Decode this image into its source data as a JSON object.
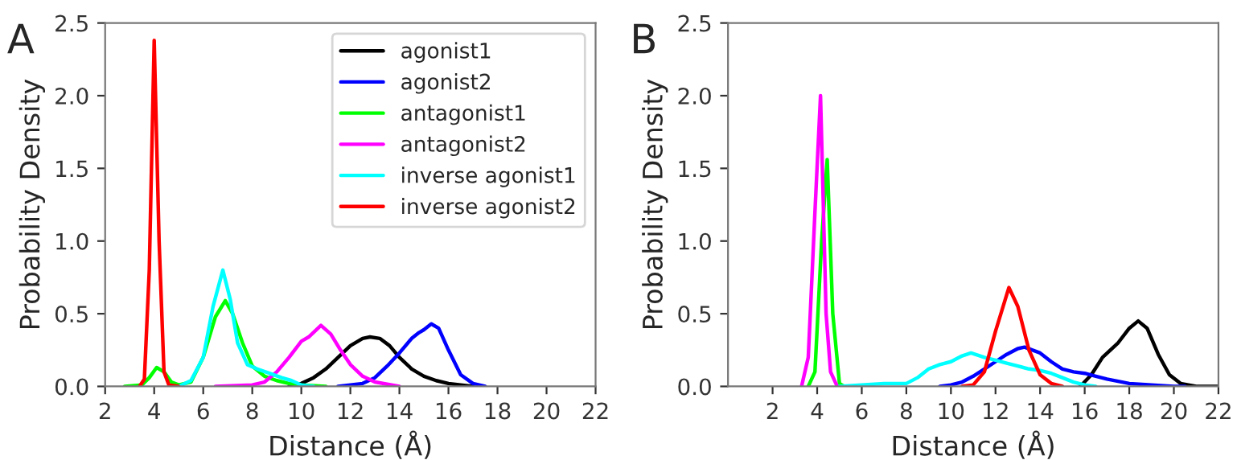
{
  "chart_data": [
    {
      "type": "line",
      "title": "A",
      "xlabel": "Distance (Å)",
      "ylabel": "Probability Density",
      "xlim": [
        2,
        22
      ],
      "xticks": [
        2,
        4,
        6,
        8,
        10,
        12,
        14,
        16,
        18,
        20,
        22
      ],
      "ylim": [
        0,
        2.5
      ],
      "yticks": [
        {
          "value": 0,
          "label": "0.0"
        },
        0.5,
        {
          "value": 1,
          "label": "1.0"
        },
        1.5,
        {
          "value": 2,
          "label": "2.0"
        },
        2.5
      ],
      "grid": false,
      "legend": "top right",
      "series": [
        {
          "name": "agonist1",
          "color": "#000000",
          "x": [
            9.5,
            10,
            10.5,
            11,
            11.5,
            12,
            12.5,
            12.8,
            13.2,
            13.6,
            14,
            14.5,
            15,
            15.5,
            16,
            16.5,
            17
          ],
          "values": [
            0,
            0.02,
            0.06,
            0.12,
            0.2,
            0.28,
            0.33,
            0.34,
            0.33,
            0.28,
            0.2,
            0.12,
            0.07,
            0.04,
            0.02,
            0.01,
            0
          ]
        },
        {
          "name": "agonist2",
          "color": "#0000ff",
          "x": [
            11.5,
            12,
            12.5,
            13,
            13.5,
            14,
            14.5,
            14.8,
            15,
            15.3,
            15.6,
            16,
            16.5,
            17,
            17.5
          ],
          "values": [
            0,
            0.01,
            0.02,
            0.06,
            0.14,
            0.23,
            0.33,
            0.37,
            0.39,
            0.43,
            0.4,
            0.25,
            0.08,
            0.02,
            0
          ]
        },
        {
          "name": "antagonist1",
          "color": "#00ff00",
          "x": [
            2.8,
            3.5,
            3.8,
            4.1,
            4.4,
            4.7,
            5,
            5.5,
            6,
            6.5,
            6.9,
            7.2,
            7.6,
            8,
            8.5,
            9,
            9.5,
            10,
            11
          ],
          "values": [
            0,
            0.01,
            0.06,
            0.13,
            0.1,
            0.03,
            0.01,
            0.03,
            0.2,
            0.48,
            0.59,
            0.5,
            0.3,
            0.14,
            0.07,
            0.04,
            0.02,
            0.01,
            0
          ]
        },
        {
          "name": "antagonist2",
          "color": "#ff00ff",
          "x": [
            6.5,
            8,
            8.5,
            9,
            9.5,
            10,
            10.3,
            10.8,
            11.2,
            11.6,
            12,
            12.5,
            13,
            14
          ],
          "values": [
            0,
            0.01,
            0.03,
            0.1,
            0.2,
            0.31,
            0.34,
            0.42,
            0.36,
            0.25,
            0.15,
            0.07,
            0.03,
            0
          ]
        },
        {
          "name": "inverse agonist1",
          "color": "#00ffff",
          "x": [
            5,
            5.5,
            6,
            6.4,
            6.8,
            7.1,
            7.4,
            7.8,
            8.2,
            8.7,
            9.2,
            9.6,
            10,
            10.5
          ],
          "values": [
            0,
            0.04,
            0.2,
            0.55,
            0.8,
            0.6,
            0.3,
            0.15,
            0.12,
            0.09,
            0.06,
            0.04,
            0.01,
            0
          ]
        },
        {
          "name": "inverse agonist2",
          "color": "#ff0000",
          "x": [
            3.4,
            3.6,
            3.8,
            4,
            4.2,
            4.4,
            4.6,
            5
          ],
          "values": [
            0,
            0.05,
            0.8,
            2.38,
            1.0,
            0.1,
            0.01,
            0
          ]
        }
      ]
    },
    {
      "type": "line",
      "title": "B",
      "xlabel": "Distance (Å)",
      "ylabel": "Probability Density",
      "xlim": [
        0,
        22
      ],
      "xticks": [
        2,
        4,
        6,
        8,
        10,
        12,
        14,
        16,
        18,
        20,
        22
      ],
      "ylim": [
        0,
        2.5
      ],
      "yticks": [
        {
          "value": 0,
          "label": "0.0"
        },
        0.5,
        {
          "value": 1,
          "label": "1.0"
        },
        1.5,
        {
          "value": 2,
          "label": "2.0"
        },
        2.5
      ],
      "grid": false,
      "series": [
        {
          "color": "#000000",
          "x": [
            15.8,
            16.3,
            16.8,
            17.5,
            18,
            18.4,
            18.8,
            19.3,
            19.8,
            20.3,
            21,
            22
          ],
          "values": [
            0,
            0.08,
            0.2,
            0.3,
            0.4,
            0.45,
            0.4,
            0.22,
            0.08,
            0.02,
            0,
            0
          ]
        },
        {
          "color": "#0000ff",
          "x": [
            9.5,
            10,
            10.5,
            11,
            11.5,
            12,
            12.5,
            13,
            13.3,
            14,
            14.5,
            15,
            15.5,
            16,
            16.5,
            17,
            18,
            19,
            20,
            20.5
          ],
          "values": [
            0,
            0.01,
            0.03,
            0.07,
            0.12,
            0.17,
            0.22,
            0.26,
            0.27,
            0.23,
            0.17,
            0.12,
            0.1,
            0.09,
            0.07,
            0.05,
            0.02,
            0.01,
            0,
            0
          ]
        },
        {
          "color": "#00ff00",
          "x": [
            3.6,
            3.9,
            4.2,
            4.45,
            4.7,
            5,
            5.2
          ],
          "values": [
            0,
            0.1,
            1.0,
            1.56,
            0.5,
            0.02,
            0
          ]
        },
        {
          "color": "#ff00ff",
          "x": [
            3.3,
            3.6,
            3.9,
            4.15,
            4.4,
            4.6,
            4.9
          ],
          "values": [
            0,
            0.2,
            1.2,
            2.0,
            0.5,
            0.1,
            0
          ]
        },
        {
          "color": "#00ffff",
          "x": [
            5,
            6,
            7,
            8,
            8.5,
            9,
            9.5,
            10,
            10.5,
            10.9,
            11.5,
            12,
            12.5,
            13,
            13.5,
            14,
            14.5,
            15,
            15.5,
            16,
            16.5
          ],
          "values": [
            0,
            0.01,
            0.02,
            0.02,
            0.06,
            0.12,
            0.15,
            0.17,
            0.21,
            0.23,
            0.2,
            0.18,
            0.16,
            0.14,
            0.12,
            0.11,
            0.09,
            0.06,
            0.03,
            0.01,
            0
          ]
        },
        {
          "color": "#ff0000",
          "x": [
            10.5,
            11,
            11.5,
            12,
            12.6,
            13,
            13.5,
            14,
            14.5,
            15
          ],
          "values": [
            0,
            0.01,
            0.1,
            0.38,
            0.68,
            0.55,
            0.25,
            0.08,
            0.02,
            0
          ]
        }
      ]
    }
  ]
}
